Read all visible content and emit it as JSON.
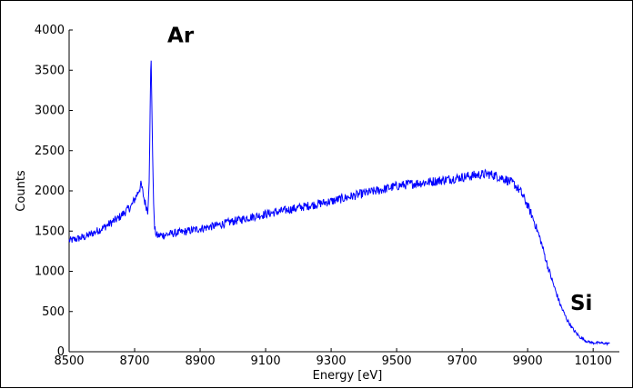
{
  "chart_data": {
    "type": "line",
    "title": "",
    "xlabel": "Energy [eV]",
    "ylabel": "Counts",
    "xlim": [
      8500,
      10180
    ],
    "ylim": [
      0,
      4000
    ],
    "x_ticks": [
      8500,
      8700,
      8900,
      9100,
      9300,
      9500,
      9700,
      9900,
      10100
    ],
    "y_ticks": [
      0,
      500,
      1000,
      1500,
      2000,
      2500,
      3000,
      3500,
      4000
    ],
    "grid": false,
    "line_color": "#0000ff",
    "annotations": [
      {
        "text": "Ar",
        "x": 8800,
        "y": 3850
      },
      {
        "text": "Si",
        "x": 10030,
        "y": 520
      }
    ],
    "series": [
      {
        "x": [
          8500,
          8550,
          8600,
          8650,
          8690,
          8710,
          8720,
          8730,
          8740,
          8745,
          8750,
          8755,
          8760,
          8765,
          8770,
          8800,
          8850,
          8900,
          8950,
          9000,
          9050,
          9100,
          9150,
          9200,
          9250,
          9300,
          9350,
          9400,
          9450,
          9500,
          9550,
          9600,
          9650,
          9700,
          9750,
          9780,
          9800,
          9830,
          9860,
          9880,
          9900,
          9920,
          9940,
          9960,
          9980,
          10000,
          10020,
          10040,
          10060,
          10080,
          10100,
          10120,
          10150
        ],
        "y": [
          1380,
          1430,
          1530,
          1660,
          1810,
          1980,
          2080,
          1880,
          1750,
          2200,
          3780,
          2400,
          1550,
          1470,
          1440,
          1460,
          1490,
          1530,
          1570,
          1620,
          1670,
          1710,
          1750,
          1790,
          1830,
          1870,
          1920,
          1970,
          2010,
          2060,
          2090,
          2110,
          2140,
          2170,
          2200,
          2210,
          2190,
          2150,
          2080,
          1980,
          1820,
          1620,
          1380,
          1080,
          820,
          580,
          400,
          270,
          180,
          130,
          110,
          110,
          100
        ]
      }
    ]
  }
}
